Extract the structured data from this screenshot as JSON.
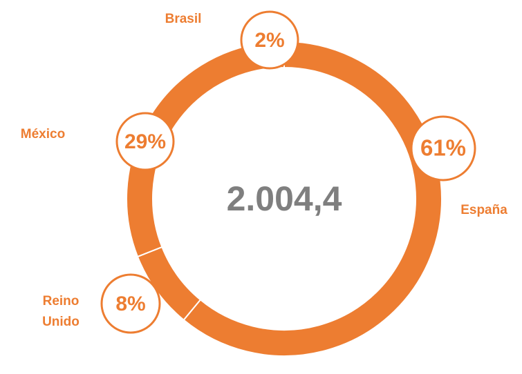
{
  "chart_data": {
    "type": "donut",
    "center_label": "2.004,4",
    "categories": [
      "España",
      "Reino Unido",
      "México",
      "Brasil"
    ],
    "values": [
      61,
      8,
      29,
      2
    ],
    "value_labels": [
      "61%",
      "8%",
      "29%",
      "2%"
    ],
    "color": "#ED7D31"
  }
}
